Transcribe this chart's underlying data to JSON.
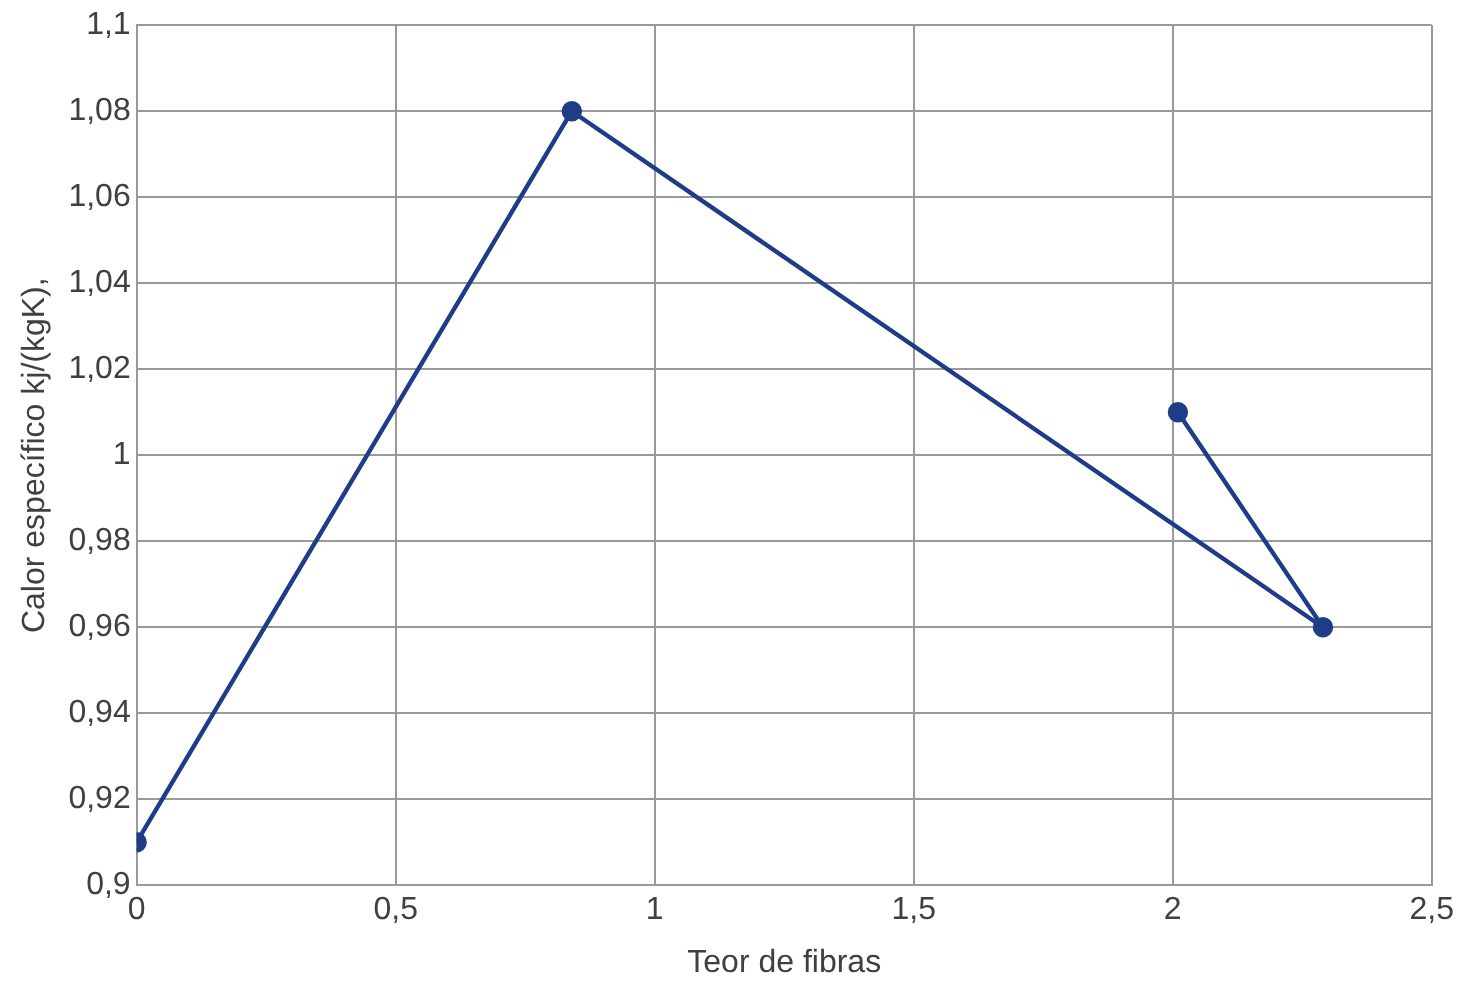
{
  "chart_data": {
    "type": "line",
    "xlabel": "Teor de fibras",
    "ylabel": "Calor específico kj/(kgK),",
    "x": [
      0,
      0.84,
      2.29,
      2.01
    ],
    "series": [
      {
        "color": "#1f3c88",
        "values": [
          0.91,
          1.08,
          0.96,
          1.01
        ]
      }
    ],
    "xlim": [
      0,
      2.5
    ],
    "xticks": [
      0,
      {
        "value": 0.5,
        "label": "0,5"
      },
      1,
      {
        "value": 1.5,
        "label": "1,5"
      },
      2,
      {
        "value": 2.5,
        "label": "2,5"
      }
    ],
    "ylim": [
      0.9,
      1.1
    ],
    "yticks": [
      {
        "value": 0.9,
        "label": "0,9"
      },
      {
        "value": 0.92,
        "label": "0,92"
      },
      {
        "value": 0.94,
        "label": "0,94"
      },
      {
        "value": 0.96,
        "label": "0,96"
      },
      {
        "value": 0.98,
        "label": "0,98"
      },
      1,
      {
        "value": 1.02,
        "label": "1,02"
      },
      {
        "value": 1.04,
        "label": "1,04"
      },
      {
        "value": 1.06,
        "label": "1,06"
      },
      {
        "value": 1.08,
        "label": "1,08"
      },
      {
        "value": 1.1,
        "label": "1,1"
      }
    ],
    "grid": true,
    "legend": false,
    "marker": "circle",
    "line_style": "solid"
  }
}
